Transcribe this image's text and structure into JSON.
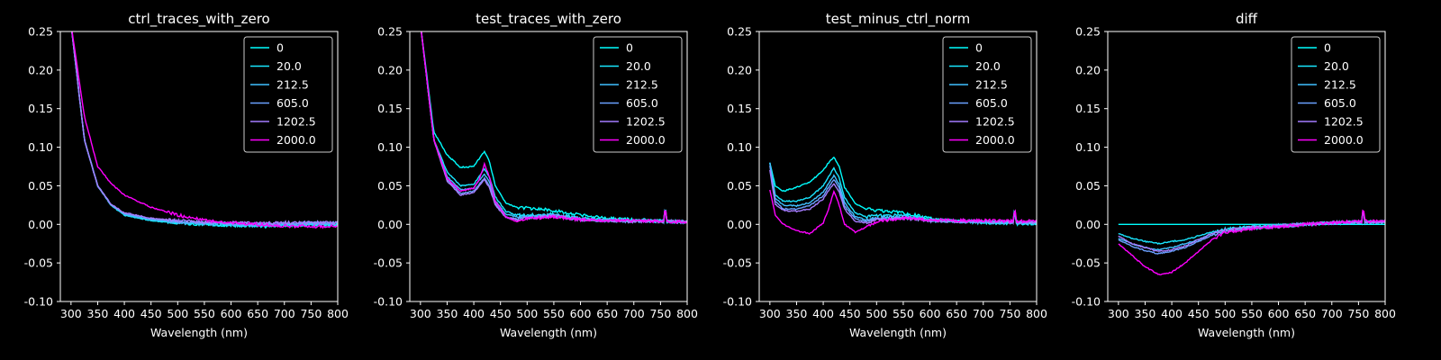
{
  "figure": {
    "background": "#000000",
    "foreground": "#ffffff"
  },
  "series_names": [
    "0",
    "20.0",
    "212.5",
    "605.0",
    "1202.5",
    "2000.0"
  ],
  "series_colors": [
    "#00ffff",
    "#19e6ff",
    "#3fc0ff",
    "#6aa0ff",
    "#a67cff",
    "#ff00ff"
  ],
  "chart_data": [
    {
      "type": "line",
      "title": "ctrl_traces_with_zero",
      "xlabel": "Wavelength (nm)",
      "ylabel": "",
      "xlim": [
        280,
        800
      ],
      "ylim": [
        -0.1,
        0.25
      ],
      "xticks": [
        300,
        350,
        400,
        450,
        500,
        550,
        600,
        650,
        700,
        750,
        800
      ],
      "yticks": [
        -0.1,
        -0.05,
        0.0,
        0.05,
        0.1,
        0.15,
        0.2,
        0.25
      ],
      "legend": "top-right",
      "grid": false,
      "x": [
        300,
        325,
        350,
        375,
        400,
        450,
        500,
        550,
        600,
        650,
        700,
        750,
        800
      ],
      "series": [
        {
          "name": "0",
          "values": [
            0.26,
            0.11,
            0.05,
            0.025,
            0.012,
            0.005,
            0.002,
            0.0,
            -0.001,
            -0.002,
            -0.001,
            0.0,
            0.0
          ]
        },
        {
          "name": "20.0",
          "values": [
            0.26,
            0.11,
            0.05,
            0.025,
            0.012,
            0.005,
            0.002,
            0.0,
            -0.001,
            -0.002,
            -0.001,
            0.0,
            0.0
          ]
        },
        {
          "name": "212.5",
          "values": [
            0.26,
            0.11,
            0.05,
            0.025,
            0.013,
            0.006,
            0.003,
            0.001,
            0.0,
            -0.001,
            0.0,
            0.001,
            0.001
          ]
        },
        {
          "name": "605.0",
          "values": [
            0.26,
            0.11,
            0.05,
            0.026,
            0.014,
            0.007,
            0.004,
            0.002,
            0.001,
            0.0,
            0.001,
            0.002,
            0.002
          ]
        },
        {
          "name": "1202.5",
          "values": [
            0.26,
            0.11,
            0.05,
            0.026,
            0.015,
            0.008,
            0.005,
            0.003,
            0.002,
            0.001,
            0.002,
            0.002,
            0.002
          ]
        },
        {
          "name": "2000.0",
          "values": [
            0.26,
            0.14,
            0.075,
            0.053,
            0.038,
            0.022,
            0.012,
            0.005,
            0.002,
            0.0,
            -0.002,
            -0.003,
            -0.002
          ]
        }
      ]
    },
    {
      "type": "line",
      "title": "test_traces_with_zero",
      "xlabel": "Wavelength (nm)",
      "ylabel": "",
      "xlim": [
        280,
        800
      ],
      "ylim": [
        -0.1,
        0.25
      ],
      "xticks": [
        300,
        350,
        400,
        450,
        500,
        550,
        600,
        650,
        700,
        750,
        800
      ],
      "yticks": [
        -0.1,
        -0.05,
        0.0,
        0.05,
        0.1,
        0.15,
        0.2,
        0.25
      ],
      "legend": "top-right",
      "grid": false,
      "x": [
        300,
        325,
        350,
        375,
        400,
        410,
        420,
        430,
        440,
        460,
        480,
        500,
        550,
        600,
        650,
        700,
        750,
        800
      ],
      "series": [
        {
          "name": "0",
          "values": [
            0.26,
            0.12,
            0.09,
            0.074,
            0.075,
            0.085,
            0.095,
            0.08,
            0.05,
            0.028,
            0.022,
            0.021,
            0.018,
            0.012,
            0.008,
            0.006,
            0.005,
            0.003
          ]
        },
        {
          "name": "20.0",
          "values": [
            0.26,
            0.11,
            0.068,
            0.05,
            0.052,
            0.062,
            0.072,
            0.06,
            0.036,
            0.017,
            0.012,
            0.012,
            0.013,
            0.008,
            0.006,
            0.005,
            0.004,
            0.003
          ]
        },
        {
          "name": "212.5",
          "values": [
            0.26,
            0.11,
            0.062,
            0.045,
            0.047,
            0.057,
            0.065,
            0.054,
            0.031,
            0.013,
            0.01,
            0.01,
            0.012,
            0.007,
            0.005,
            0.004,
            0.004,
            0.003
          ]
        },
        {
          "name": "605.0",
          "values": [
            0.26,
            0.11,
            0.058,
            0.04,
            0.043,
            0.052,
            0.06,
            0.049,
            0.027,
            0.01,
            0.007,
            0.009,
            0.011,
            0.006,
            0.005,
            0.004,
            0.004,
            0.003
          ]
        },
        {
          "name": "1202.5",
          "values": [
            0.26,
            0.11,
            0.056,
            0.038,
            0.041,
            0.05,
            0.058,
            0.047,
            0.025,
            0.009,
            0.006,
            0.008,
            0.011,
            0.006,
            0.005,
            0.004,
            0.004,
            0.003
          ]
        },
        {
          "name": "2000.0",
          "values": [
            0.26,
            0.11,
            0.06,
            0.043,
            0.047,
            0.058,
            0.078,
            0.06,
            0.03,
            0.01,
            0.004,
            0.007,
            0.01,
            0.006,
            0.005,
            0.005,
            0.004,
            0.003
          ]
        }
      ]
    },
    {
      "type": "line",
      "title": "test_minus_ctrl_norm",
      "xlabel": "Wavelength (nm)",
      "ylabel": "",
      "xlim": [
        280,
        800
      ],
      "ylim": [
        -0.1,
        0.25
      ],
      "xticks": [
        300,
        350,
        400,
        450,
        500,
        550,
        600,
        650,
        700,
        750,
        800
      ],
      "yticks": [
        -0.1,
        -0.05,
        0.0,
        0.05,
        0.1,
        0.15,
        0.2,
        0.25
      ],
      "legend": "top-right",
      "grid": false,
      "x": [
        300,
        310,
        325,
        350,
        375,
        400,
        410,
        420,
        430,
        440,
        460,
        480,
        500,
        550,
        600,
        650,
        700,
        750,
        800
      ],
      "series": [
        {
          "name": "0",
          "values": [
            0.08,
            0.05,
            0.043,
            0.048,
            0.055,
            0.07,
            0.08,
            0.087,
            0.075,
            0.048,
            0.027,
            0.02,
            0.018,
            0.015,
            0.008,
            0.004,
            0.002,
            0.001,
            0.0
          ]
        },
        {
          "name": "20.0",
          "values": [
            0.08,
            0.038,
            0.03,
            0.03,
            0.035,
            0.05,
            0.062,
            0.073,
            0.06,
            0.035,
            0.015,
            0.01,
            0.011,
            0.012,
            0.006,
            0.004,
            0.003,
            0.002,
            0.001
          ]
        },
        {
          "name": "212.5",
          "values": [
            0.08,
            0.034,
            0.025,
            0.024,
            0.028,
            0.042,
            0.053,
            0.063,
            0.052,
            0.028,
            0.01,
            0.006,
            0.008,
            0.01,
            0.005,
            0.004,
            0.003,
            0.002,
            0.002
          ]
        },
        {
          "name": "605.0",
          "values": [
            0.076,
            0.03,
            0.02,
            0.02,
            0.024,
            0.037,
            0.048,
            0.058,
            0.047,
            0.024,
            0.007,
            0.004,
            0.007,
            0.009,
            0.005,
            0.004,
            0.003,
            0.003,
            0.002
          ]
        },
        {
          "name": "1202.5",
          "values": [
            0.07,
            0.026,
            0.018,
            0.017,
            0.02,
            0.033,
            0.044,
            0.053,
            0.042,
            0.02,
            0.004,
            0.002,
            0.006,
            0.008,
            0.005,
            0.004,
            0.004,
            0.003,
            0.003
          ]
        },
        {
          "name": "2000.0",
          "values": [
            0.045,
            0.012,
            0.0,
            -0.008,
            -0.012,
            0.002,
            0.02,
            0.043,
            0.025,
            0.0,
            -0.01,
            -0.004,
            0.004,
            0.008,
            0.006,
            0.005,
            0.005,
            0.004,
            0.004
          ]
        }
      ]
    },
    {
      "type": "line",
      "title": "diff",
      "xlabel": "Wavelength (nm)",
      "ylabel": "",
      "xlim": [
        280,
        800
      ],
      "ylim": [
        -0.1,
        0.25
      ],
      "xticks": [
        300,
        350,
        400,
        450,
        500,
        550,
        600,
        650,
        700,
        750,
        800
      ],
      "yticks": [
        -0.1,
        -0.05,
        0.0,
        0.05,
        0.1,
        0.15,
        0.2,
        0.25
      ],
      "legend": "top-right",
      "grid": false,
      "x": [
        300,
        325,
        350,
        375,
        400,
        425,
        450,
        475,
        500,
        550,
        600,
        650,
        700,
        750,
        800
      ],
      "series": [
        {
          "name": "0",
          "values": [
            0.0,
            0.0,
            0.0,
            0.0,
            0.0,
            0.0,
            0.0,
            0.0,
            0.0,
            0.0,
            0.0,
            0.0,
            0.0,
            0.0,
            0.0
          ]
        },
        {
          "name": "20.0",
          "values": [
            -0.012,
            -0.018,
            -0.022,
            -0.025,
            -0.022,
            -0.02,
            -0.015,
            -0.01,
            -0.006,
            -0.003,
            -0.002,
            0.0,
            0.002,
            0.003,
            0.003
          ]
        },
        {
          "name": "212.5",
          "values": [
            -0.018,
            -0.025,
            -0.03,
            -0.033,
            -0.03,
            -0.025,
            -0.02,
            -0.012,
            -0.008,
            -0.004,
            -0.002,
            0.0,
            0.002,
            0.003,
            0.003
          ]
        },
        {
          "name": "605.0",
          "values": [
            -0.02,
            -0.028,
            -0.034,
            -0.038,
            -0.035,
            -0.03,
            -0.022,
            -0.014,
            -0.009,
            -0.005,
            -0.003,
            0.0,
            0.002,
            0.003,
            0.003
          ]
        },
        {
          "name": "1202.5",
          "values": [
            -0.015,
            -0.025,
            -0.03,
            -0.035,
            -0.033,
            -0.028,
            -0.02,
            -0.012,
            -0.008,
            -0.004,
            -0.002,
            0.0,
            0.002,
            0.003,
            0.003
          ]
        },
        {
          "name": "2000.0",
          "values": [
            -0.025,
            -0.04,
            -0.055,
            -0.065,
            -0.062,
            -0.05,
            -0.035,
            -0.02,
            -0.01,
            -0.006,
            -0.003,
            0.0,
            0.002,
            0.004,
            0.004
          ]
        }
      ]
    }
  ]
}
